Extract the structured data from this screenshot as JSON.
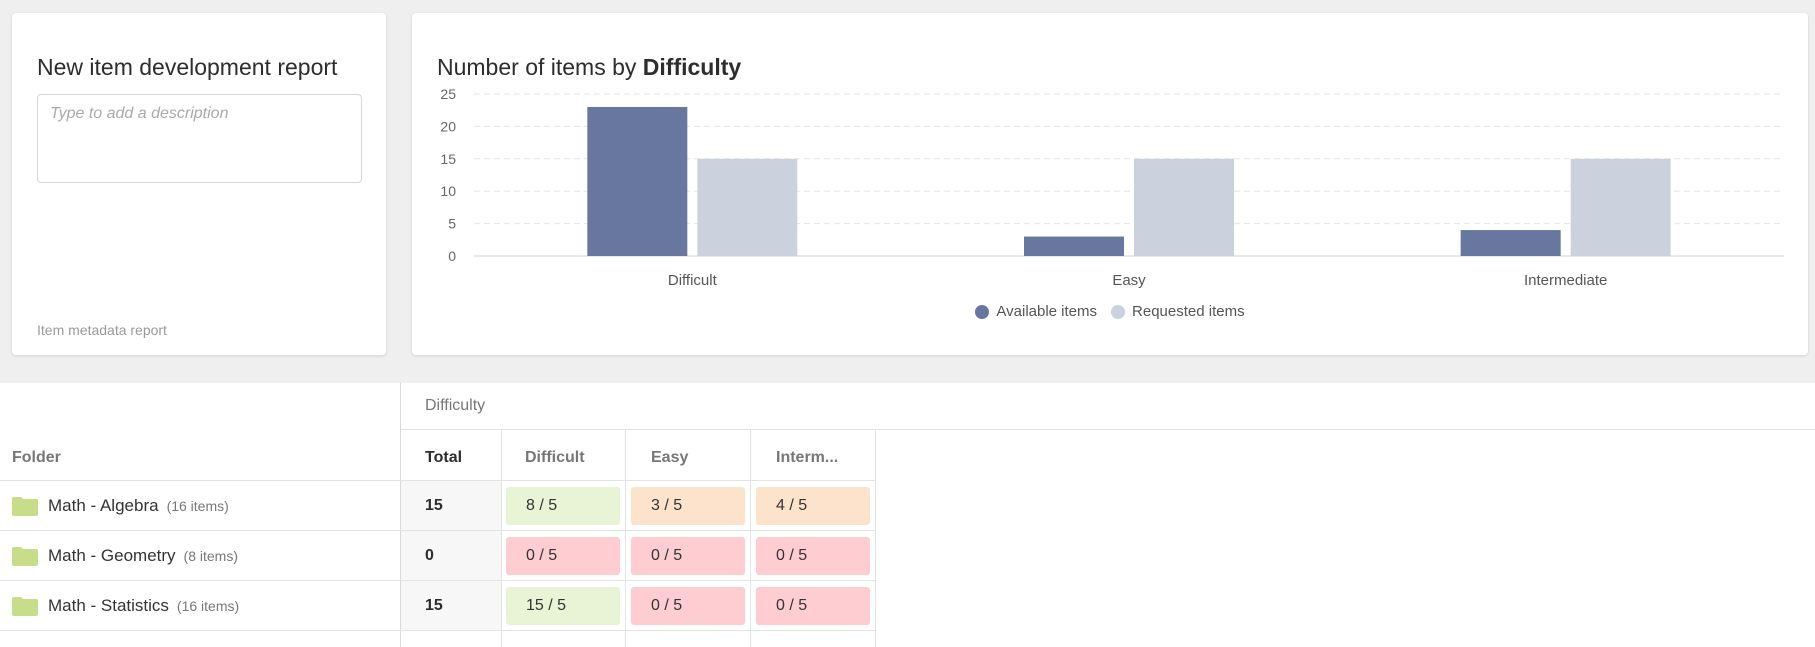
{
  "report": {
    "title": "New item development report",
    "description_placeholder": "Type to add a description",
    "footer": "Item metadata report"
  },
  "chart_header": {
    "title_prefix": "Number of items by ",
    "title_bold": "Difficulty"
  },
  "colors": {
    "available": "#67779f",
    "requested": "#ccd1de",
    "green_cell": "#e9f3d6",
    "orange_cell": "#fde3cc",
    "red_cell": "#fdcdd2",
    "folder": "#c7dd8a"
  },
  "chart_data": {
    "type": "bar",
    "categories": [
      "Difficult",
      "Easy",
      "Intermediate"
    ],
    "series": [
      {
        "name": "Available items",
        "values": [
          23,
          3,
          4
        ]
      },
      {
        "name": "Requested items",
        "values": [
          15,
          15,
          15
        ]
      }
    ],
    "title": "Number of items by Difficulty",
    "ylim": [
      0,
      25
    ],
    "yticks": [
      0,
      5,
      10,
      15,
      20,
      25
    ],
    "grid": true,
    "legend": "bottom-center"
  },
  "table": {
    "folder_header": "Folder",
    "group_header": "Difficulty",
    "columns": [
      "Total",
      "Difficult",
      "Easy",
      "Interm..."
    ],
    "rows": [
      {
        "name": "Math - Algebra",
        "count": "(16 items)",
        "total": "15",
        "cells": [
          {
            "text": "8 / 5",
            "status": "green"
          },
          {
            "text": "3 / 5",
            "status": "orange"
          },
          {
            "text": "4 / 5",
            "status": "orange"
          }
        ]
      },
      {
        "name": "Math - Geometry",
        "count": "(8 items)",
        "total": "0",
        "cells": [
          {
            "text": "0 / 5",
            "status": "red"
          },
          {
            "text": "0 / 5",
            "status": "red"
          },
          {
            "text": "0 / 5",
            "status": "red"
          }
        ]
      },
      {
        "name": "Math - Statistics",
        "count": "(16 items)",
        "total": "15",
        "cells": [
          {
            "text": "15 / 5",
            "status": "green"
          },
          {
            "text": "0 / 5",
            "status": "red"
          },
          {
            "text": "0 / 5",
            "status": "red"
          }
        ]
      }
    ]
  }
}
